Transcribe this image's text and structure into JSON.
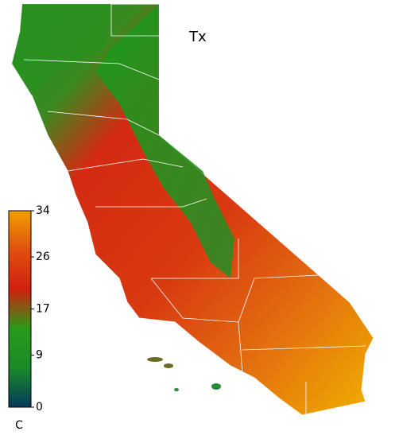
{
  "map": {
    "title": "Tx",
    "colorbar": {
      "unit": "C",
      "lim": [
        0,
        34
      ],
      "ticks": [
        0,
        9,
        17,
        26,
        34
      ],
      "colors": [
        "#053a5a",
        "#1a8a2a",
        "#2a9a1a",
        "#d02010",
        "#e05010",
        "#f0a000"
      ]
    }
  }
}
